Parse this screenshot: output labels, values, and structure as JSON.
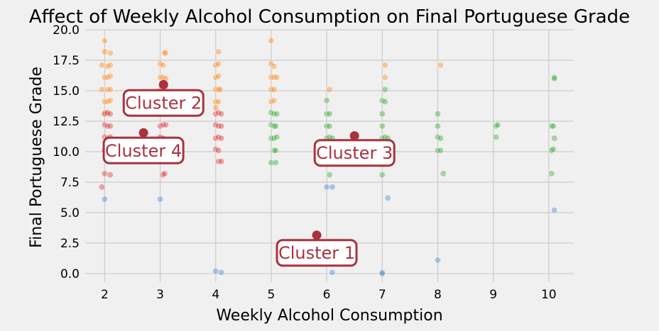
{
  "chart_data": {
    "type": "scatter",
    "title": "Affect of Weekly Alcohol Consumption on Final Portuguese Grade",
    "xlabel": "Weekly Alcohol Consumption",
    "ylabel": "Final Portuguese Grade",
    "xlim": [
      1.65,
      10.45
    ],
    "ylim": [
      -0.7,
      20.0
    ],
    "xticks": [
      "2",
      "3",
      "4",
      "5",
      "6",
      "7",
      "8",
      "9",
      "10"
    ],
    "yticks": [
      "0.0",
      "2.5",
      "5.0",
      "7.5",
      "10.0",
      "12.5",
      "15.0",
      "17.5",
      "20.0"
    ],
    "grid": true,
    "colors": {
      "cluster_1": "#3a7fbf",
      "cluster_2": "#ff7f0e",
      "cluster_3": "#2ca02c",
      "cluster_4": "#d62728",
      "centroid": "#a8323e"
    },
    "series": [
      {
        "color": "#3a7fbf",
        "points": [
          [
            2.0,
            6.1
          ],
          [
            3.0,
            6.1
          ],
          [
            4.0,
            0.2
          ],
          [
            4.1,
            0.1
          ],
          [
            6.0,
            7.1
          ],
          [
            6.1,
            7.1
          ],
          [
            6.1,
            0.1
          ],
          [
            7.0,
            0.1
          ],
          [
            7.0,
            0.0
          ],
          [
            7.1,
            6.2
          ],
          [
            8.0,
            1.1
          ],
          [
            10.1,
            5.2
          ]
        ]
      },
      {
        "color": "#ff7f0e",
        "points": [
          [
            2.0,
            19.1
          ],
          [
            2.0,
            18.2
          ],
          [
            2.1,
            18.1
          ],
          [
            1.95,
            17.1
          ],
          [
            2.05,
            17.0
          ],
          [
            2.1,
            17.1
          ],
          [
            2.0,
            16.1
          ],
          [
            2.05,
            16.1
          ],
          [
            2.1,
            16.2
          ],
          [
            1.95,
            15.1
          ],
          [
            2.05,
            15.1
          ],
          [
            2.1,
            15.1
          ],
          [
            2.0,
            14.1
          ],
          [
            2.05,
            14.1
          ],
          [
            2.1,
            14.2
          ],
          [
            2.0,
            13.2
          ],
          [
            2.05,
            13.1
          ],
          [
            3.0,
            17.2
          ],
          [
            3.05,
            17.1
          ],
          [
            3.1,
            18.1
          ],
          [
            3.08,
            18.1
          ],
          [
            3.0,
            16.1
          ],
          [
            3.05,
            16.1
          ],
          [
            3.1,
            16.0
          ],
          [
            3.0,
            15.1
          ],
          [
            3.05,
            15.2
          ],
          [
            3.1,
            15.1
          ],
          [
            3.0,
            14.1
          ],
          [
            3.05,
            14.1
          ],
          [
            3.1,
            14.0
          ],
          [
            4.05,
            18.2
          ],
          [
            4.0,
            17.1
          ],
          [
            4.05,
            17.2
          ],
          [
            4.0,
            16.1
          ],
          [
            4.05,
            16.2
          ],
          [
            4.0,
            15.1
          ],
          [
            4.05,
            15.1
          ],
          [
            4.08,
            15.1
          ],
          [
            4.0,
            14.1
          ],
          [
            4.05,
            14.1
          ],
          [
            4.0,
            13.6
          ],
          [
            5.0,
            19.1
          ],
          [
            5.0,
            17.2
          ],
          [
            5.05,
            17.0
          ],
          [
            5.0,
            16.1
          ],
          [
            5.05,
            16.1
          ],
          [
            5.1,
            16.1
          ],
          [
            5.0,
            15.1
          ],
          [
            5.05,
            15.1
          ],
          [
            5.0,
            14.1
          ],
          [
            5.05,
            14.2
          ],
          [
            6.05,
            15.1
          ],
          [
            7.05,
            17.1
          ],
          [
            7.05,
            16.1
          ],
          [
            8.05,
            17.1
          ]
        ]
      },
      {
        "color": "#2ca02c",
        "points": [
          [
            5.0,
            13.2
          ],
          [
            5.05,
            13.1
          ],
          [
            5.1,
            13.1
          ],
          [
            5.0,
            12.2
          ],
          [
            5.05,
            12.1
          ],
          [
            5.08,
            12.1
          ],
          [
            5.0,
            11.1
          ],
          [
            5.05,
            11.1
          ],
          [
            5.1,
            11.2
          ],
          [
            5.05,
            10.1
          ],
          [
            5.08,
            10.1
          ],
          [
            5.0,
            9.1
          ],
          [
            5.08,
            9.1
          ],
          [
            6.0,
            14.2
          ],
          [
            6.0,
            13.1
          ],
          [
            6.05,
            13.1
          ],
          [
            6.0,
            12.1
          ],
          [
            6.05,
            12.1
          ],
          [
            6.0,
            11.1
          ],
          [
            6.05,
            11.2
          ],
          [
            6.1,
            11.1
          ],
          [
            6.0,
            10.1
          ],
          [
            6.05,
            10.1
          ],
          [
            6.05,
            8.1
          ],
          [
            6.0,
            9.2
          ],
          [
            7.0,
            14.2
          ],
          [
            7.05,
            14.1
          ],
          [
            7.05,
            15.1
          ],
          [
            7.0,
            13.1
          ],
          [
            7.0,
            12.1
          ],
          [
            7.0,
            11.1
          ],
          [
            7.05,
            11.2
          ],
          [
            7.1,
            11.1
          ],
          [
            7.05,
            10.1
          ],
          [
            7.0,
            8.1
          ],
          [
            8.0,
            13.1
          ],
          [
            8.0,
            12.1
          ],
          [
            8.0,
            11.2
          ],
          [
            8.05,
            11.1
          ],
          [
            8.0,
            10.1
          ],
          [
            8.05,
            10.1
          ],
          [
            8.1,
            8.2
          ],
          [
            9.05,
            12.1
          ],
          [
            9.08,
            12.2
          ],
          [
            9.05,
            11.2
          ],
          [
            10.05,
            12.1
          ],
          [
            10.08,
            12.1
          ],
          [
            10.1,
            11.1
          ],
          [
            10.05,
            10.1
          ],
          [
            10.08,
            10.2
          ],
          [
            10.05,
            8.2
          ],
          [
            10.1,
            16.1
          ],
          [
            10.1,
            16.0
          ]
        ]
      },
      {
        "color": "#d62728",
        "points": [
          [
            2.0,
            13.1
          ],
          [
            2.05,
            13.2
          ],
          [
            2.1,
            13.1
          ],
          [
            2.0,
            12.2
          ],
          [
            2.05,
            12.1
          ],
          [
            2.1,
            12.1
          ],
          [
            2.0,
            11.2
          ],
          [
            2.05,
            11.1
          ],
          [
            2.1,
            11.2
          ],
          [
            2.0,
            10.1
          ],
          [
            2.05,
            10.1
          ],
          [
            2.1,
            10.0
          ],
          [
            2.0,
            8.2
          ],
          [
            2.1,
            8.1
          ],
          [
            1.95,
            7.1
          ],
          [
            3.0,
            12.1
          ],
          [
            3.05,
            12.2
          ],
          [
            3.1,
            12.2
          ],
          [
            3.0,
            11.2
          ],
          [
            3.05,
            11.1
          ],
          [
            3.0,
            10.1
          ],
          [
            3.05,
            10.1
          ],
          [
            3.05,
            8.1
          ],
          [
            3.08,
            8.2
          ],
          [
            4.0,
            13.1
          ],
          [
            4.05,
            13.2
          ],
          [
            4.1,
            13.1
          ],
          [
            4.0,
            12.2
          ],
          [
            4.05,
            12.1
          ],
          [
            4.1,
            12.1
          ],
          [
            4.0,
            11.1
          ],
          [
            4.05,
            11.2
          ],
          [
            4.1,
            11.1
          ],
          [
            4.0,
            10.2
          ],
          [
            4.05,
            10.1
          ],
          [
            4.05,
            9.2
          ],
          [
            4.1,
            9.2
          ]
        ]
      }
    ],
    "centroids": [
      [
        5.82,
        3.15
      ],
      [
        3.06,
        15.5
      ],
      [
        6.5,
        11.3
      ],
      [
        2.7,
        11.55
      ]
    ],
    "annotations": [
      {
        "text": "Cluster 1",
        "x": 5.82,
        "y": 1.7
      },
      {
        "text": "Cluster 2",
        "x": 3.06,
        "y": 14.0
      },
      {
        "text": "Cluster 3",
        "x": 6.5,
        "y": 9.9
      },
      {
        "text": "Cluster 4",
        "x": 2.7,
        "y": 10.1
      }
    ]
  }
}
